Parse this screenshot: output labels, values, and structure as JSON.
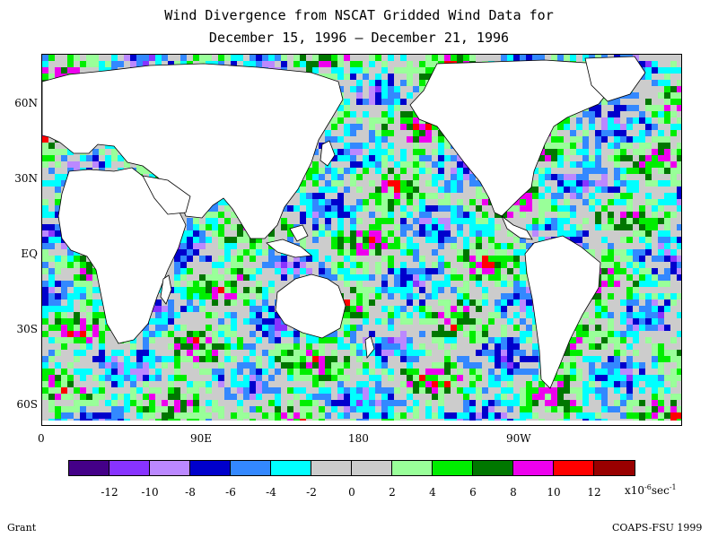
{
  "title_line1": "Wind Divergence from NSCAT Gridded Wind Data for",
  "title_line2": "December 15, 1996 – December 21, 1996",
  "lat_labels": [
    "60N",
    "30N",
    "EQ",
    "30S",
    "60S"
  ],
  "lon_labels": [
    "0",
    "90E",
    "180",
    "90W"
  ],
  "colorbar": {
    "colors": [
      "#440088",
      "#8833ff",
      "#bb88ff",
      "#0000cc",
      "#3388ff",
      "#00ffff",
      "#cccccc",
      "#cccccc",
      "#99ff99",
      "#00ee00",
      "#007700",
      "#ee00ee",
      "#ff0000",
      "#990000"
    ],
    "labels": [
      "-12",
      "-10",
      "-8",
      "-6",
      "-4",
      "-2",
      "0",
      "2",
      "4",
      "6",
      "8",
      "10",
      "12"
    ],
    "units_base": "x10",
    "units_exp": "-6",
    "units_tail": "sec",
    "units_exp2": "-1"
  },
  "footer_left": "Grant",
  "footer_right": "COAPS-FSU 1999"
}
